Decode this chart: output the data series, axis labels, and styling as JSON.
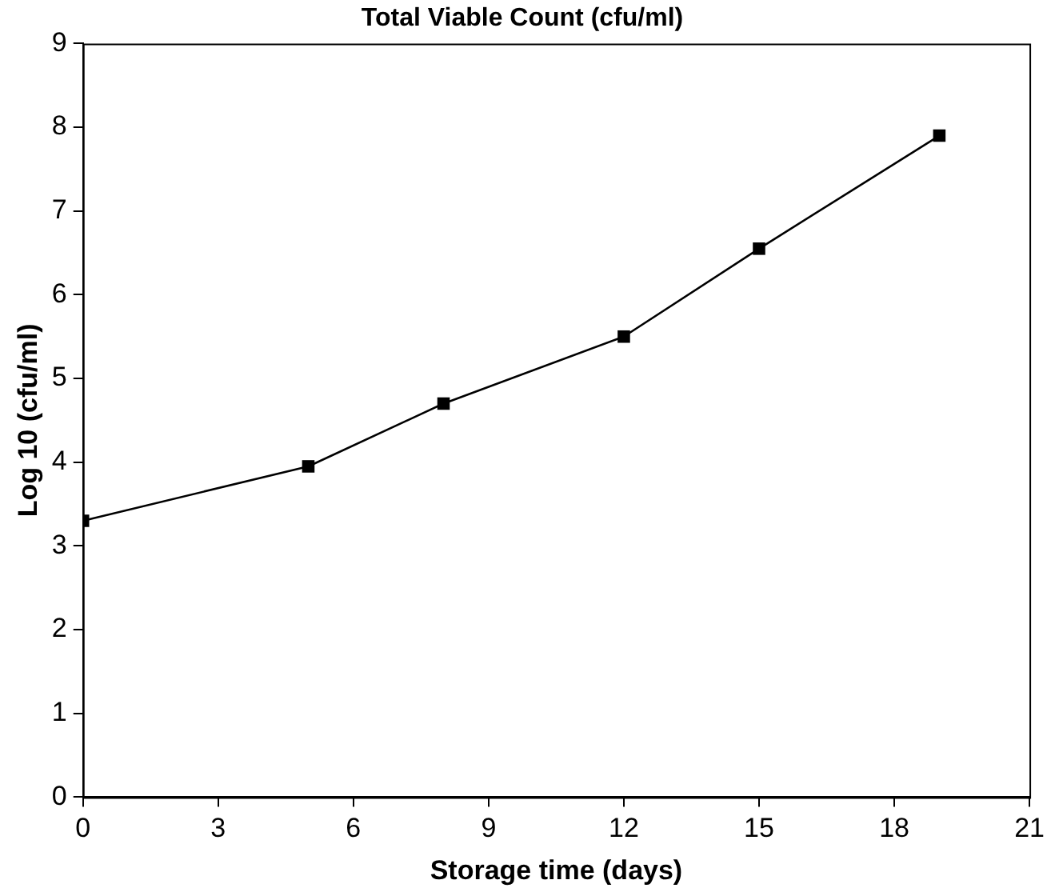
{
  "chart_data": {
    "type": "line",
    "title": "Total Viable Count (cfu/ml)",
    "xlabel": "Storage time (days)",
    "ylabel": "Log 10 (cfu/ml)",
    "x": [
      0,
      5,
      8,
      12,
      15,
      19
    ],
    "series": [
      {
        "color": "#000000",
        "values": [
          3.3,
          3.95,
          4.7,
          5.5,
          6.55,
          7.9
        ]
      }
    ],
    "xlim": [
      0,
      21
    ],
    "xticks": [
      0,
      3,
      6,
      9,
      12,
      15,
      18,
      21
    ],
    "ylim": [
      0,
      9
    ],
    "yticks": [
      0,
      1,
      2,
      3,
      4,
      5,
      6,
      7,
      8,
      9
    ],
    "grid": false,
    "legend": false,
    "marker": "square",
    "line_style": "solid"
  }
}
